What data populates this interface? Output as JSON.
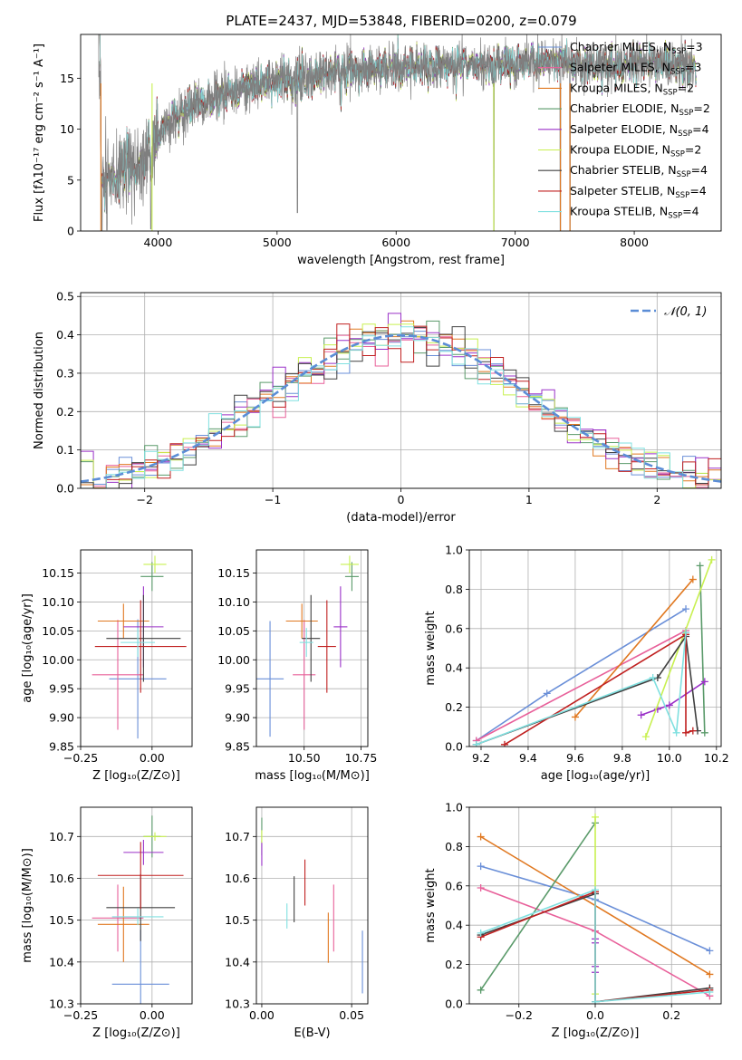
{
  "title": "PLATE=2437, MJD=53848, FIBERID=0200, z=0.079",
  "colors": {
    "Chabrier MILES": "#6a8fd8",
    "Salpeter MILES": "#e8609a",
    "Kroupa MILES": "#e07820",
    "Chabrier ELODIE": "#5a9a6a",
    "Salpeter ELODIE": "#9a30c8",
    "Kroupa ELODIE": "#c8f050",
    "Chabrier STELIB": "#404040",
    "Salpeter STELIB": "#c02020",
    "Kroupa STELIB": "#80e0e0"
  },
  "chart_data": [
    {
      "id": "spectrum",
      "type": "line",
      "title": "PLATE=2437, MJD=53848, FIBERID=0200, z=0.079",
      "xlabel": "wavelength [Angstrom, rest frame]",
      "ylabel": "Flux [fλ10⁻¹⁷ erg cm⁻² s⁻¹ A⁻¹]",
      "xlim": [
        3350,
        8730
      ],
      "ylim": [
        0,
        19.3
      ],
      "xticks": [
        4000,
        5000,
        6000,
        7000,
        8000
      ],
      "yticks": [
        0,
        5,
        10,
        15
      ],
      "legend_position": "top-right",
      "legend": [
        {
          "label": "Chabrier MILES, N",
          "sub": "SSP",
          "suffix": "=3"
        },
        {
          "label": "Salpeter MILES, N",
          "sub": "SSP",
          "suffix": "=3"
        },
        {
          "label": "Kroupa MILES, N",
          "sub": "SSP",
          "suffix": "=2"
        },
        {
          "label": "Chabrier ELODIE, N",
          "sub": "SSP",
          "suffix": "=2"
        },
        {
          "label": "Salpeter ELODIE, N",
          "sub": "SSP",
          "suffix": "=4"
        },
        {
          "label": "Kroupa ELODIE, N",
          "sub": "SSP",
          "suffix": "=2"
        },
        {
          "label": "Chabrier STELIB, N",
          "sub": "SSP",
          "suffix": "=4"
        },
        {
          "label": "Salpeter STELIB, N",
          "sub": "SSP",
          "suffix": "=4"
        },
        {
          "label": "Kroupa STELIB, N",
          "sub": "SSP",
          "suffix": "=4"
        }
      ],
      "continuum": {
        "x": [
          3520,
          3700,
          3850,
          3950,
          4050,
          4200,
          4400,
          4600,
          4800,
          5000,
          5200,
          5400,
          5600,
          5800,
          6000,
          6200,
          6400,
          6600,
          6800,
          7000,
          7200,
          7400,
          7600,
          7800,
          8000,
          8200,
          8400,
          8520
        ],
        "y": [
          5.2,
          5.7,
          6.4,
          7.8,
          10.3,
          11.7,
          12.6,
          13.6,
          14.4,
          14.8,
          14.9,
          15.5,
          15.8,
          16.0,
          16.1,
          16.1,
          16.2,
          16.3,
          16.3,
          16.6,
          16.5,
          16.7,
          16.3,
          16.1,
          16.5,
          16.6,
          16.3,
          16.2
        ]
      },
      "dips": [
        [
          5170,
          1.8
        ],
        [
          6820,
          0.0
        ],
        [
          7380,
          0.0
        ],
        [
          7460,
          0.0
        ],
        [
          3530,
          0.0
        ],
        [
          3940,
          0.2
        ],
        [
          3570,
          0.1
        ]
      ],
      "model_range": [
        3510,
        8520
      ]
    },
    {
      "id": "residuals",
      "type": "line",
      "xlabel": "(data-model)/error",
      "ylabel": "Normed distribution",
      "xlim": [
        -2.5,
        2.5
      ],
      "ylim": [
        0,
        0.51
      ],
      "xticks": [
        -2,
        -1,
        0,
        1,
        2
      ],
      "yticks": [
        0.0,
        0.1,
        0.2,
        0.3,
        0.4,
        0.5
      ],
      "grid": true,
      "legend_position": "top-right",
      "legend": [
        "𝒩(0, 1)"
      ],
      "gaussian_color": "#5b8dd6"
    },
    {
      "id": "age-vs-Z",
      "type": "scatter",
      "xlabel": "Z [log₁₀(Z/Z⊙)]",
      "ylabel": "age  [log₁₀(age/yr)]",
      "xlim": [
        -0.25,
        0.14
      ],
      "ylim": [
        9.85,
        10.19
      ],
      "xticks": [
        -0.25,
        0.0
      ],
      "yticks": [
        9.85,
        9.9,
        9.95,
        10.0,
        10.05,
        10.1,
        10.15
      ],
      "grid": true,
      "points": [
        {
          "series": "Chabrier MILES",
          "x": -0.05,
          "y": 9.967,
          "xerr": 0.1,
          "yerr": 0.103
        },
        {
          "series": "Salpeter MILES",
          "x": -0.12,
          "y": 9.974,
          "xerr": 0.09,
          "yerr": 0.095
        },
        {
          "series": "Kroupa MILES",
          "x": -0.1,
          "y": 10.067,
          "xerr": 0.09,
          "yerr": 0.03
        },
        {
          "series": "Chabrier ELODIE",
          "x": 0.0,
          "y": 10.144,
          "xerr": 0.04,
          "yerr": 0.025
        },
        {
          "series": "Salpeter ELODIE",
          "x": -0.03,
          "y": 10.057,
          "xerr": 0.07,
          "yerr": 0.07
        },
        {
          "series": "Kroupa ELODIE",
          "x": 0.01,
          "y": 10.165,
          "xerr": 0.04,
          "yerr": 0.015
        },
        {
          "series": "Chabrier STELIB",
          "x": -0.03,
          "y": 10.037,
          "xerr": 0.13,
          "yerr": 0.075
        },
        {
          "series": "Salpeter STELIB",
          "x": -0.04,
          "y": 10.023,
          "xerr": 0.16,
          "yerr": 0.08
        },
        {
          "series": "Kroupa STELIB",
          "x": -0.05,
          "y": 10.03,
          "xerr": 0.06,
          "yerr": 0.025
        }
      ]
    },
    {
      "id": "age-vs-mass",
      "type": "scatter",
      "xlabel": "mass [log₁₀(M/M⊙)]",
      "xlim": [
        10.29,
        10.78
      ],
      "ylim": [
        9.85,
        10.19
      ],
      "xticks": [
        10.5,
        10.75
      ],
      "yticks": [
        9.85,
        9.9,
        9.95,
        10.0,
        10.05,
        10.1,
        10.15
      ],
      "grid": true,
      "points": [
        {
          "series": "Chabrier MILES",
          "x": 10.35,
          "y": 9.967,
          "xerr": 0.06,
          "yerr": 0.1
        },
        {
          "series": "Salpeter MILES",
          "x": 10.5,
          "y": 9.974,
          "xerr": 0.05,
          "yerr": 0.095
        },
        {
          "series": "Kroupa MILES",
          "x": 10.49,
          "y": 10.067,
          "xerr": 0.07,
          "yerr": 0.03
        },
        {
          "series": "Chabrier ELODIE",
          "x": 10.71,
          "y": 10.144,
          "xerr": 0.03,
          "yerr": 0.025
        },
        {
          "series": "Salpeter ELODIE",
          "x": 10.66,
          "y": 10.057,
          "xerr": 0.03,
          "yerr": 0.07
        },
        {
          "series": "Kroupa ELODIE",
          "x": 10.7,
          "y": 10.165,
          "xerr": 0.04,
          "yerr": 0.015
        },
        {
          "series": "Chabrier STELIB",
          "x": 10.53,
          "y": 10.037,
          "xerr": 0.04,
          "yerr": 0.075
        },
        {
          "series": "Salpeter STELIB",
          "x": 10.6,
          "y": 10.023,
          "xerr": 0.04,
          "yerr": 0.08
        },
        {
          "series": "Kroupa STELIB",
          "x": 10.51,
          "y": 10.03,
          "xerr": 0.03,
          "yerr": 0.025
        }
      ]
    },
    {
      "id": "weight-vs-age",
      "type": "line",
      "xlabel": "age  [log₁₀(age/yr)]",
      "ylabel": "mass weight",
      "xlim": [
        9.15,
        10.22
      ],
      "ylim": [
        0,
        1.0
      ],
      "xticks": [
        9.2,
        9.4,
        9.6,
        9.8,
        10.0,
        10.2
      ],
      "yticks": [
        0.0,
        0.2,
        0.4,
        0.6,
        0.8,
        1.0
      ],
      "grid": true,
      "series": [
        {
          "name": "Chabrier MILES",
          "x": [
            9.18,
            9.48,
            10.07
          ],
          "y": [
            0.03,
            0.27,
            0.7
          ]
        },
        {
          "name": "Salpeter MILES",
          "x": [
            9.18,
            10.07,
            10.07
          ],
          "y": [
            0.03,
            0.59,
            0.58
          ]
        },
        {
          "name": "Kroupa MILES",
          "x": [
            9.6,
            10.1
          ],
          "y": [
            0.15,
            0.85
          ]
        },
        {
          "name": "Chabrier ELODIE",
          "x": [
            10.15,
            10.13
          ],
          "y": [
            0.07,
            0.92
          ]
        },
        {
          "name": "Salpeter ELODIE",
          "x": [
            9.88,
            9.95,
            10.0,
            10.15
          ],
          "y": [
            0.16,
            0.19,
            0.21,
            0.33
          ]
        },
        {
          "name": "Kroupa ELODIE",
          "x": [
            9.9,
            10.18
          ],
          "y": [
            0.05,
            0.95
          ]
        },
        {
          "name": "Chabrier STELIB",
          "x": [
            9.18,
            9.95,
            10.07,
            10.12
          ],
          "y": [
            0.01,
            0.35,
            0.56,
            0.08
          ]
        },
        {
          "name": "Salpeter STELIB",
          "x": [
            9.3,
            10.07,
            10.07,
            10.1
          ],
          "y": [
            0.01,
            0.57,
            0.07,
            0.08
          ]
        },
        {
          "name": "Kroupa STELIB",
          "x": [
            9.18,
            9.93,
            10.03,
            10.07
          ],
          "y": [
            0.01,
            0.35,
            0.07,
            0.58
          ]
        }
      ]
    },
    {
      "id": "mass-vs-Z",
      "type": "scatter",
      "xlabel": "Z [log₁₀(Z/Z⊙)]",
      "ylabel": "mass [log₁₀(M/M⊙)]",
      "xlim": [
        -0.25,
        0.14
      ],
      "ylim": [
        10.3,
        10.77
      ],
      "xticks": [
        -0.25,
        0.0
      ],
      "yticks": [
        10.3,
        10.4,
        10.5,
        10.6,
        10.7
      ],
      "grid": true,
      "points": [
        {
          "series": "Chabrier MILES",
          "x": -0.04,
          "y": 10.347,
          "xerr": 0.1,
          "yerr": 0.13
        },
        {
          "series": "Salpeter MILES",
          "x": -0.12,
          "y": 10.505,
          "xerr": 0.09,
          "yerr": 0.08
        },
        {
          "series": "Kroupa MILES",
          "x": -0.1,
          "y": 10.49,
          "xerr": 0.09,
          "yerr": 0.09
        },
        {
          "series": "Chabrier ELODIE",
          "x": 0.0,
          "y": 10.7,
          "xerr": 0.03,
          "yerr": 0.05
        },
        {
          "series": "Salpeter ELODIE",
          "x": -0.03,
          "y": 10.662,
          "xerr": 0.07,
          "yerr": 0.03
        },
        {
          "series": "Kroupa ELODIE",
          "x": 0.01,
          "y": 10.7,
          "xerr": 0.04,
          "yerr": 0.01
        },
        {
          "series": "Chabrier STELIB",
          "x": -0.04,
          "y": 10.53,
          "xerr": 0.12,
          "yerr": 0.08
        },
        {
          "series": "Salpeter STELIB",
          "x": -0.04,
          "y": 10.607,
          "xerr": 0.15,
          "yerr": 0.08
        },
        {
          "series": "Kroupa STELIB",
          "x": -0.05,
          "y": 10.508,
          "xerr": 0.09,
          "yerr": 0.02
        }
      ]
    },
    {
      "id": "mass-vs-ebv",
      "type": "scatter",
      "xlabel": "E(B-V)",
      "xlim": [
        -0.003,
        0.059
      ],
      "ylim": [
        10.3,
        10.77
      ],
      "xticks": [
        0.0,
        0.05
      ],
      "yticks": [
        10.3,
        10.4,
        10.5,
        10.6,
        10.7
      ],
      "grid": true,
      "points": [
        {
          "series": "Chabrier MILES",
          "x": 0.056,
          "y": 10.4,
          "xerr": 0,
          "yerr": 0.075
        },
        {
          "series": "Salpeter MILES",
          "x": 0.04,
          "y": 10.505,
          "xerr": 0,
          "yerr": 0.08
        },
        {
          "series": "Kroupa MILES",
          "x": 0.037,
          "y": 10.458,
          "xerr": 0,
          "yerr": 0.06
        },
        {
          "series": "Chabrier ELODIE",
          "x": 0.0,
          "y": 10.7,
          "xerr": 0,
          "yerr": 0.045
        },
        {
          "series": "Salpeter ELODIE",
          "x": 0.0,
          "y": 10.66,
          "xerr": 0,
          "yerr": 0.03
        },
        {
          "series": "Kroupa ELODIE",
          "x": 0.0,
          "y": 10.7,
          "xerr": 0,
          "yerr": 0.015
        },
        {
          "series": "Chabrier STELIB",
          "x": 0.018,
          "y": 10.55,
          "xerr": 0,
          "yerr": 0.055
        },
        {
          "series": "Salpeter STELIB",
          "x": 0.024,
          "y": 10.59,
          "xerr": 0,
          "yerr": 0.055
        },
        {
          "series": "Kroupa STELIB",
          "x": 0.014,
          "y": 10.51,
          "xerr": 0,
          "yerr": 0.03
        }
      ]
    },
    {
      "id": "weight-vs-Z",
      "type": "line",
      "xlabel": "Z [log₁₀(Z/Z⊙)]",
      "ylabel": "mass weight",
      "xlim": [
        -0.33,
        0.33
      ],
      "ylim": [
        0,
        1.0
      ],
      "xticks": [
        -0.2,
        0.0,
        0.2
      ],
      "yticks": [
        0.0,
        0.2,
        0.4,
        0.6,
        0.8,
        1.0
      ],
      "grid": true,
      "series": [
        {
          "name": "Chabrier MILES",
          "x": [
            -0.3,
            0.0,
            0.3
          ],
          "y": [
            0.7,
            0.53,
            0.27
          ]
        },
        {
          "name": "Salpeter MILES",
          "x": [
            -0.3,
            0.0,
            0.3
          ],
          "y": [
            0.59,
            0.37,
            0.04
          ]
        },
        {
          "name": "Kroupa MILES",
          "x": [
            -0.3,
            0.3
          ],
          "y": [
            0.85,
            0.15
          ]
        },
        {
          "name": "Chabrier ELODIE",
          "x": [
            -0.3,
            0.0
          ],
          "y": [
            0.07,
            0.92
          ]
        },
        {
          "name": "Salpeter ELODIE",
          "x": [
            0.0,
            0.0,
            0.0,
            0.0
          ],
          "y": [
            0.33,
            0.19,
            0.16,
            0.31
          ]
        },
        {
          "name": "Kroupa ELODIE",
          "x": [
            0.0,
            0.0
          ],
          "y": [
            0.05,
            0.95
          ]
        },
        {
          "name": "Chabrier STELIB",
          "x": [
            -0.3,
            0.0,
            0.0,
            0.3
          ],
          "y": [
            0.35,
            0.56,
            0.01,
            0.08
          ]
        },
        {
          "name": "Salpeter STELIB",
          "x": [
            -0.3,
            0.0,
            0.0,
            0.3
          ],
          "y": [
            0.34,
            0.57,
            0.01,
            0.07
          ]
        },
        {
          "name": "Kroupa STELIB",
          "x": [
            -0.3,
            0.0,
            0.0,
            0.3
          ],
          "y": [
            0.36,
            0.58,
            0.01,
            0.06
          ]
        }
      ]
    }
  ]
}
